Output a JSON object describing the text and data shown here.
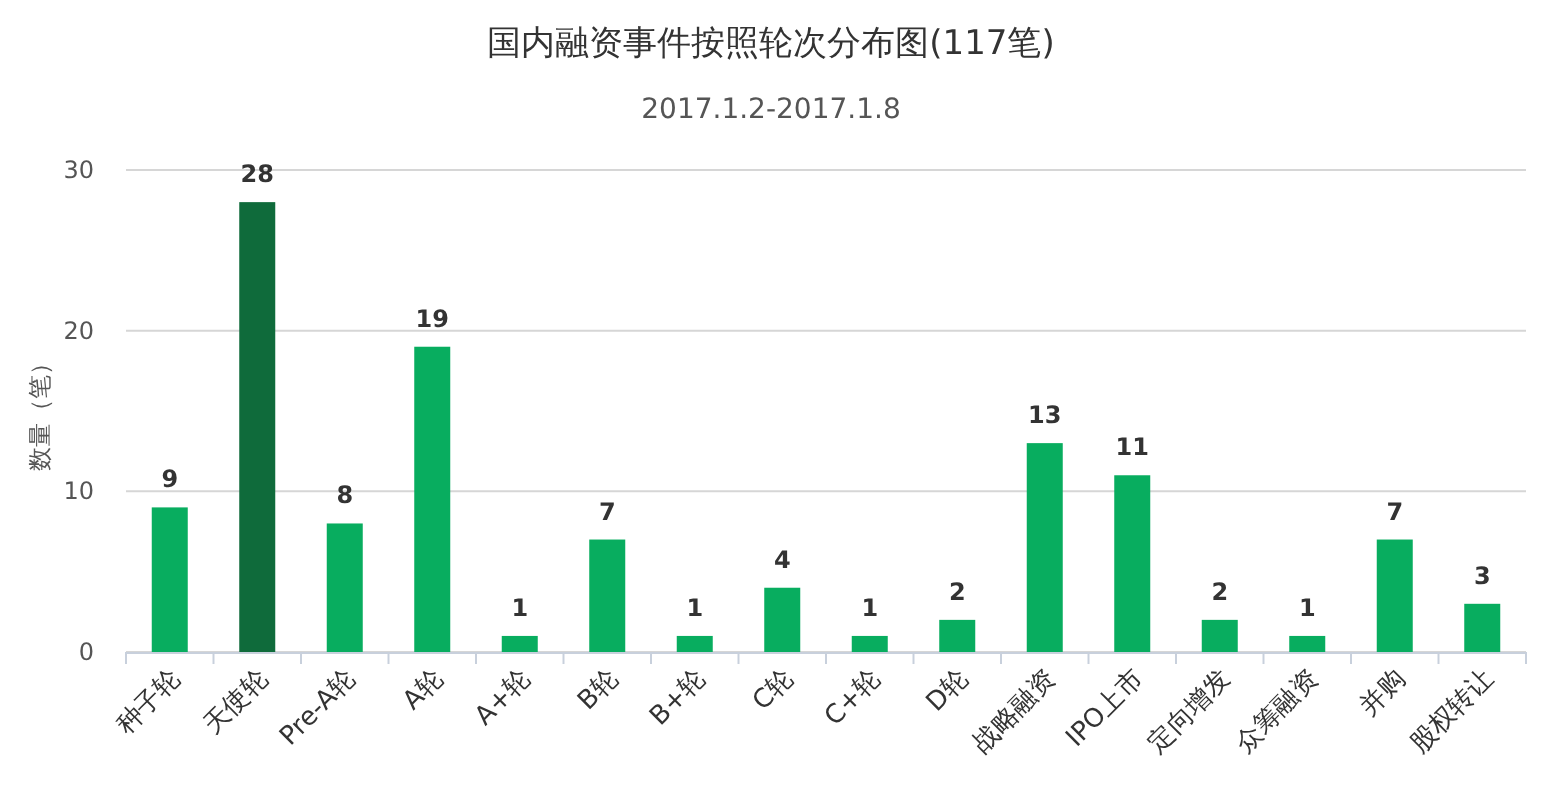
{
  "chart_data": {
    "type": "bar",
    "title": "国内融资事件按照轮次分布图(117笔)",
    "subtitle": "2017.1.2-2017.1.8",
    "ylabel": "数量（笔）",
    "categories": [
      "种子轮",
      "天使轮",
      "Pre-A轮",
      "A轮",
      "A+轮",
      "B轮",
      "B+轮",
      "C轮",
      "C+轮",
      "D轮",
      "战略融资",
      "IPO上市",
      "定向增发",
      "众筹融资",
      "并购",
      "股权转让"
    ],
    "values": [
      9,
      28,
      8,
      19,
      1,
      7,
      1,
      4,
      1,
      2,
      13,
      11,
      2,
      1,
      7,
      3
    ],
    "colors": [
      "#08ad5f",
      "#0f6b3b",
      "#08ad5f",
      "#08ad5f",
      "#08ad5f",
      "#08ad5f",
      "#08ad5f",
      "#08ad5f",
      "#08ad5f",
      "#08ad5f",
      "#08ad5f",
      "#08ad5f",
      "#08ad5f",
      "#08ad5f",
      "#08ad5f",
      "#08ad5f"
    ],
    "ylim": [
      0,
      30
    ],
    "yticks": [
      0,
      10,
      20,
      30
    ],
    "grid": "y",
    "data_labels": true
  }
}
